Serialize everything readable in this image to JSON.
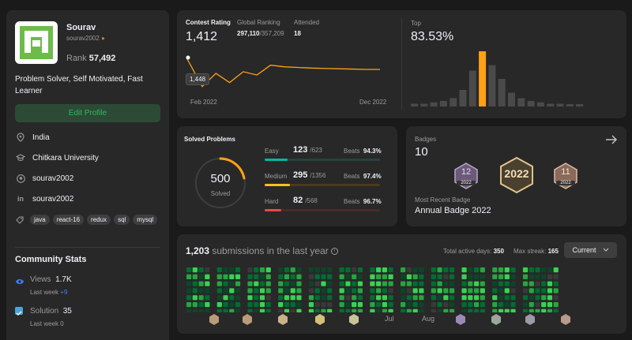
{
  "profile": {
    "name": "Sourav",
    "username": "sourav2002",
    "rank_label": "Rank",
    "rank": "57,492",
    "bio": "Problem Solver, Self Motivated, Fast Learner",
    "edit_label": "Edit Profile",
    "location": "India",
    "university": "Chitkara University",
    "github": "sourav2002",
    "linkedin": "sourav2002",
    "skills": [
      "java",
      "react-16",
      "redux",
      "sql",
      "mysql"
    ]
  },
  "community": {
    "title": "Community Stats",
    "views_label": "Views",
    "views": "1.7K",
    "views_week_label": "Last week",
    "views_week": "+9",
    "solution_label": "Solution",
    "solution": "35",
    "solution_week_label": "Last week",
    "solution_week": "0"
  },
  "contest": {
    "rating_label": "Contest Rating",
    "rating": "1,412",
    "ranking_label": "Global Ranking",
    "ranking": "297,110",
    "ranking_total": "/357,209",
    "attended_label": "Attended",
    "attended": "18",
    "tooltip": "1,448",
    "x_start": "Feb 2022",
    "x_end": "Dec 2022",
    "top_label": "Top",
    "top_value": "83.53%",
    "rating_series": [
      1448,
      1360,
      1400,
      1372,
      1405,
      1395,
      1425,
      1420,
      1418,
      1416,
      1415,
      1414,
      1413,
      1412,
      1412
    ],
    "histogram": [
      2,
      2,
      3,
      4,
      6,
      12,
      26,
      40,
      30,
      20,
      10,
      6,
      4,
      3,
      2,
      2,
      1,
      1
    ],
    "highlight_index": 7
  },
  "solved": {
    "title": "Solved Problems",
    "total": "500",
    "total_label": "Solved",
    "beats_label": "Beats",
    "easy_label": "Easy",
    "easy": "123",
    "easy_total": "/623",
    "easy_beats": "94.3%",
    "medium_label": "Medium",
    "medium": "295",
    "medium_total": "/1356",
    "medium_beats": "97.4%",
    "hard_label": "Hard",
    "hard": "82",
    "hard_total": "/568",
    "hard_beats": "96.7%",
    "colors": {
      "easy": "#00b8a3",
      "medium": "#ffc01e",
      "hard": "#ef4743"
    }
  },
  "badges": {
    "title": "Badges",
    "count": "10",
    "recent_label": "Most Recent Badge",
    "recent_name": "Annual Badge 2022",
    "badge_12_month": "12",
    "badge_12_year": "2022",
    "badge_annual_year": "2022",
    "badge_11_month": "11",
    "badge_11_year": "2022"
  },
  "submissions": {
    "count": "1,203",
    "label": "submissions in the last year",
    "active_label": "Total active days:",
    "active": "350",
    "streak_label": "Max streak:",
    "streak": "165",
    "dropdown": "Current",
    "months": [
      "Jul",
      "Aug"
    ]
  }
}
